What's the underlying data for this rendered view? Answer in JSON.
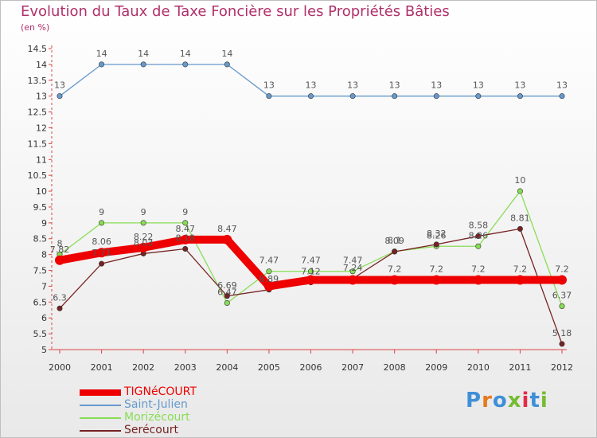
{
  "chart_data": {
    "type": "line",
    "title": "Evolution du Taux de Taxe Foncière sur les Propriétés Bâties",
    "subtitle": "(en %)",
    "x": [
      "2000",
      "2001",
      "2002",
      "2003",
      "2004",
      "2005",
      "2006",
      "2007",
      "2008",
      "2009",
      "2010",
      "2011",
      "2012"
    ],
    "ylim": [
      5,
      14.5
    ],
    "yticks": [
      "5",
      "5.5",
      "6",
      "6.5",
      "7",
      "7.5",
      "8",
      "8.5",
      "9",
      "9.5",
      "10",
      "10.5",
      "11",
      "11.5",
      "12",
      "12.5",
      "13",
      "13.5",
      "14",
      "14.5"
    ],
    "grid": false,
    "legend_position": "bottom-left",
    "series": [
      {
        "name": "TIGNéCOURT",
        "color": "#ee0000",
        "values": [
          7.82,
          8.06,
          8.22,
          8.47,
          8.47,
          7.0,
          7.2,
          7.2,
          7.2,
          7.2,
          7.2,
          7.2,
          7.2
        ],
        "labels": [
          "7.82",
          "8.06",
          "8.22",
          "8.47",
          "8.47",
          "",
          "",
          "",
          "7.2",
          "7.2",
          "7.2",
          "7.2",
          "7.2"
        ]
      },
      {
        "name": "Saint-Julien",
        "color": "#6699cc",
        "values": [
          13,
          14,
          14,
          14,
          14,
          13,
          13,
          13,
          13,
          13,
          13,
          13,
          13
        ],
        "labels": [
          "13",
          "14",
          "14",
          "14",
          "14",
          "13",
          "13",
          "13",
          "13",
          "13",
          "13",
          "13",
          "13"
        ]
      },
      {
        "name": "Morizécourt",
        "color": "#88dd55",
        "values": [
          8,
          9,
          9,
          9,
          6.47,
          7.47,
          7.47,
          7.47,
          8.1,
          8.26,
          8.26,
          10,
          6.37
        ],
        "labels": [
          "8",
          "9",
          "9",
          "9",
          "6.47",
          "7.47",
          "7.47",
          "7.47",
          "8.1",
          "8.26",
          "8.26",
          "10",
          "6.37"
        ]
      },
      {
        "name": "Serécourt",
        "color": "#772222",
        "values": [
          6.3,
          7.71,
          8.03,
          8.18,
          6.69,
          6.89,
          7.12,
          7.24,
          8.09,
          8.32,
          8.58,
          8.81,
          5.18
        ],
        "labels": [
          "6.3",
          "7.71",
          "8.03",
          "8.18",
          "6.69",
          "6.89",
          "7.12",
          "7.24",
          "8.09",
          "8.32",
          "8.58",
          "8.81",
          "5.18"
        ]
      }
    ]
  },
  "brand": {
    "text": "Proxiti",
    "letter_colors": [
      "#3f8fd8",
      "#e57a1e",
      "#3f8fd8",
      "#77bb33",
      "#e52b4a",
      "#3f8fd8",
      "#77bb33"
    ]
  }
}
